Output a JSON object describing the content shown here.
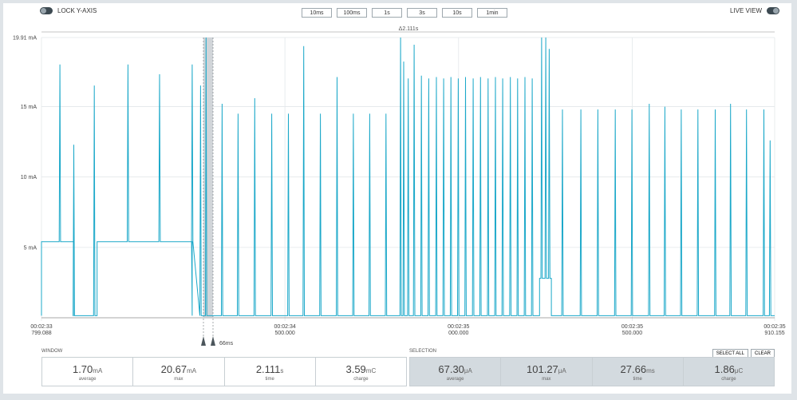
{
  "toolbar": {
    "lock_label": "LOCK Y-AXIS",
    "live_label": "LIVE VIEW",
    "zoom_buttons": [
      "10ms",
      "100ms",
      "1s",
      "3s",
      "10s",
      "1min"
    ]
  },
  "selection_marker": {
    "delta_label": "Δ2.111s",
    "width_label": "66ms"
  },
  "chart_data": {
    "type": "line",
    "ylabel_ticks": [
      "19.91 mA",
      "15 mA",
      "10 mA",
      "5 mA"
    ],
    "y_ticks": [
      19.91,
      15,
      10,
      5
    ],
    "ylim": [
      0,
      19.91
    ],
    "x_ticks": [
      {
        "time": "00:02:33",
        "sub": "799.088"
      },
      {
        "time": "00:02:34",
        "sub": "500.000"
      },
      {
        "time": "00:02:35",
        "sub": "000.000"
      },
      {
        "time": "00:02:35",
        "sub": "500.000"
      },
      {
        "time": "00:02:35",
        "sub": "910.155"
      }
    ],
    "x_tick_seconds": [
      0,
      0.700912,
      1.200912,
      1.700912,
      2.111067
    ],
    "xlim_seconds": [
      0,
      2.111067
    ],
    "grid": true,
    "series": [
      {
        "color": "#1ba8c9",
        "baseline_mA": 0.15,
        "plateaus": [
          {
            "x_start": 0.0,
            "x_end": 0.092,
            "level_mA": 5.4
          },
          {
            "x_start": 0.16,
            "x_end": 0.434,
            "level_mA": 5.4
          },
          {
            "x_start": 1.434,
            "x_end": 1.468,
            "level_mA": 2.8
          }
        ],
        "spikes": [
          {
            "x": 0.053,
            "y": 18.0
          },
          {
            "x": 0.093,
            "y": 12.3
          },
          {
            "x": 0.152,
            "y": 16.5
          },
          {
            "x": 0.249,
            "y": 18.0
          },
          {
            "x": 0.34,
            "y": 17.3
          },
          {
            "x": 0.434,
            "y": 18.0
          },
          {
            "x": 0.458,
            "y": 16.5
          },
          {
            "x": 0.474,
            "y": 19.91
          },
          {
            "x": 0.52,
            "y": 15.2
          },
          {
            "x": 0.566,
            "y": 14.5
          },
          {
            "x": 0.614,
            "y": 15.6
          },
          {
            "x": 0.663,
            "y": 14.5
          },
          {
            "x": 0.711,
            "y": 14.5
          },
          {
            "x": 0.755,
            "y": 19.3
          },
          {
            "x": 0.803,
            "y": 14.5
          },
          {
            "x": 0.851,
            "y": 17.1
          },
          {
            "x": 0.898,
            "y": 14.5
          },
          {
            "x": 0.945,
            "y": 14.5
          },
          {
            "x": 0.992,
            "y": 14.5
          },
          {
            "x": 1.034,
            "y": 19.91
          },
          {
            "x": 1.043,
            "y": 18.2
          },
          {
            "x": 1.056,
            "y": 17.0
          },
          {
            "x": 1.073,
            "y": 19.4
          },
          {
            "x": 1.094,
            "y": 17.2
          },
          {
            "x": 1.115,
            "y": 17.0
          },
          {
            "x": 1.137,
            "y": 17.1
          },
          {
            "x": 1.158,
            "y": 17.0
          },
          {
            "x": 1.179,
            "y": 17.1
          },
          {
            "x": 1.2,
            "y": 17.0
          },
          {
            "x": 1.221,
            "y": 17.1
          },
          {
            "x": 1.243,
            "y": 17.0
          },
          {
            "x": 1.264,
            "y": 17.1
          },
          {
            "x": 1.286,
            "y": 17.0
          },
          {
            "x": 1.307,
            "y": 17.1
          },
          {
            "x": 1.328,
            "y": 17.0
          },
          {
            "x": 1.35,
            "y": 17.1
          },
          {
            "x": 1.371,
            "y": 17.0
          },
          {
            "x": 1.392,
            "y": 17.1
          },
          {
            "x": 1.413,
            "y": 17.0
          },
          {
            "x": 1.44,
            "y": 19.91
          },
          {
            "x": 1.452,
            "y": 19.91
          },
          {
            "x": 1.462,
            "y": 19.1
          },
          {
            "x": 1.5,
            "y": 14.8
          },
          {
            "x": 1.553,
            "y": 14.8
          },
          {
            "x": 1.602,
            "y": 14.8
          },
          {
            "x": 1.652,
            "y": 14.8
          },
          {
            "x": 1.7,
            "y": 14.8
          },
          {
            "x": 1.75,
            "y": 15.2
          },
          {
            "x": 1.795,
            "y": 15.0
          },
          {
            "x": 1.842,
            "y": 14.8
          },
          {
            "x": 1.89,
            "y": 14.8
          },
          {
            "x": 1.94,
            "y": 14.8
          },
          {
            "x": 1.984,
            "y": 15.2
          },
          {
            "x": 2.03,
            "y": 14.8
          },
          {
            "x": 2.08,
            "y": 14.8
          },
          {
            "x": 2.098,
            "y": 12.6
          }
        ]
      }
    ]
  },
  "window_stats": {
    "label": "WINDOW",
    "cells": [
      {
        "value": "1.70",
        "unit": "mA",
        "caption": "average"
      },
      {
        "value": "20.67",
        "unit": "mA",
        "caption": "max"
      },
      {
        "value": "2.111",
        "unit": "s",
        "caption": "time"
      },
      {
        "value": "3.59",
        "unit": "mC",
        "caption": "charge"
      }
    ]
  },
  "selection_stats": {
    "label": "SELECTION",
    "select_all": "SELECT ALL",
    "clear": "CLEAR",
    "cells": [
      {
        "value": "67.30",
        "unit": "μA",
        "caption": "average"
      },
      {
        "value": "101.27",
        "unit": "μA",
        "caption": "max"
      },
      {
        "value": "27.66",
        "unit": "ms",
        "caption": "time"
      },
      {
        "value": "1.86",
        "unit": "μC",
        "caption": "charge"
      }
    ]
  }
}
